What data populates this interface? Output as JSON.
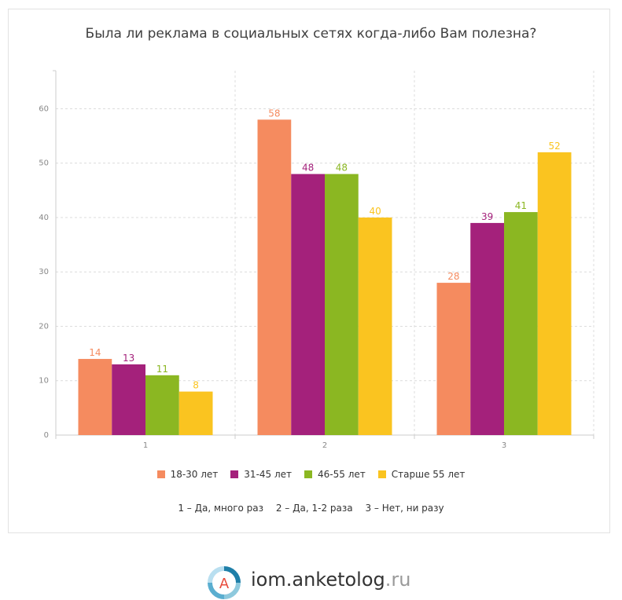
{
  "chart_data": {
    "type": "bar",
    "title": "Была ли реклама в социальных сетях когда-либо Вам полезна?",
    "categories": [
      "1",
      "2",
      "3"
    ],
    "series": [
      {
        "name": "18-30 лет",
        "color": "#f58b5f",
        "values": [
          14,
          58,
          28
        ]
      },
      {
        "name": "31-45 лет",
        "color": "#a4217b",
        "values": [
          13,
          48,
          39
        ]
      },
      {
        "name": "46-55 лет",
        "color": "#8bb722",
        "values": [
          11,
          48,
          41
        ]
      },
      {
        "name": "Старше 55 лет",
        "color": "#fac420",
        "values": [
          8,
          40,
          52
        ]
      }
    ],
    "yticks": [
      "0",
      "10",
      "20",
      "30",
      "40",
      "50",
      "60"
    ],
    "ylim": [
      0,
      67
    ],
    "grid": true,
    "legend_position": "bottom",
    "xlabel": "",
    "ylabel": ""
  },
  "notes": [
    "1 – Да, много раз",
    "2 – Да, 1-2 раза",
    "3 – Нет, ни разу"
  ],
  "brand": {
    "icon": "anketolog-logo-icon",
    "main": "iom.anketolog",
    "tld": ".ru"
  }
}
